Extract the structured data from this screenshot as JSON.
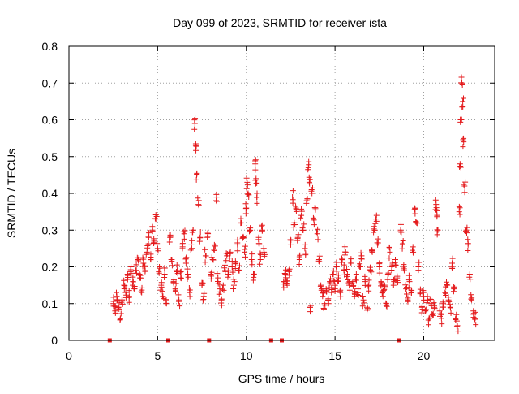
{
  "chart_data": {
    "type": "scatter",
    "title": "Day 099 of 2023, SRMTID for receiver ista",
    "xlabel": "GPS time / hours",
    "ylabel": "SRMTID / TECUs",
    "xlim": [
      0,
      24
    ],
    "ylim": [
      0,
      0.8
    ],
    "xticks": [
      0,
      5,
      10,
      15,
      20
    ],
    "yticks": [
      0,
      0.1,
      0.2,
      0.3,
      0.4,
      0.5,
      0.6,
      0.7,
      0.8
    ],
    "grid": true,
    "marker": "+",
    "color": "#e41a1c",
    "zero_markers_x": [
      2.3,
      5.6,
      7.9,
      11.4,
      12.0,
      18.6
    ],
    "series": [
      {
        "name": "SRMTID",
        "points": [
          [
            2.5,
            0.1
          ],
          [
            2.6,
            0.08
          ],
          [
            2.7,
            0.12
          ],
          [
            2.8,
            0.09
          ],
          [
            2.9,
            0.06
          ],
          [
            3.0,
            0.11
          ],
          [
            3.1,
            0.15
          ],
          [
            3.2,
            0.13
          ],
          [
            3.3,
            0.18
          ],
          [
            3.4,
            0.12
          ],
          [
            3.5,
            0.2
          ],
          [
            3.6,
            0.16
          ],
          [
            3.7,
            0.14
          ],
          [
            3.8,
            0.19
          ],
          [
            3.9,
            0.22
          ],
          [
            4.0,
            0.17
          ],
          [
            4.1,
            0.13
          ],
          [
            4.2,
            0.21
          ],
          [
            4.3,
            0.19
          ],
          [
            4.4,
            0.24
          ],
          [
            4.5,
            0.28
          ],
          [
            4.6,
            0.22
          ],
          [
            4.7,
            0.31
          ],
          [
            4.8,
            0.27
          ],
          [
            4.9,
            0.33
          ],
          [
            5.0,
            0.25
          ],
          [
            5.1,
            0.2
          ],
          [
            5.2,
            0.15
          ],
          [
            5.3,
            0.12
          ],
          [
            5.4,
            0.18
          ],
          [
            5.5,
            0.1
          ],
          [
            5.7,
            0.28
          ],
          [
            5.8,
            0.22
          ],
          [
            5.9,
            0.16
          ],
          [
            6.0,
            0.14
          ],
          [
            6.1,
            0.19
          ],
          [
            6.2,
            0.11
          ],
          [
            6.3,
            0.17
          ],
          [
            6.4,
            0.25
          ],
          [
            6.5,
            0.29
          ],
          [
            6.6,
            0.21
          ],
          [
            6.7,
            0.18
          ],
          [
            6.8,
            0.13
          ],
          [
            6.9,
            0.26
          ],
          [
            7.0,
            0.3
          ],
          [
            7.1,
            0.59
          ],
          [
            7.15,
            0.53
          ],
          [
            7.2,
            0.45
          ],
          [
            7.3,
            0.37
          ],
          [
            7.4,
            0.28
          ],
          [
            7.5,
            0.15
          ],
          [
            7.6,
            0.12
          ],
          [
            7.7,
            0.23
          ],
          [
            7.8,
            0.28
          ],
          [
            8.0,
            0.18
          ],
          [
            8.1,
            0.22
          ],
          [
            8.2,
            0.26
          ],
          [
            8.3,
            0.38
          ],
          [
            8.4,
            0.17
          ],
          [
            8.5,
            0.14
          ],
          [
            8.6,
            0.11
          ],
          [
            8.7,
            0.15
          ],
          [
            8.8,
            0.19
          ],
          [
            8.9,
            0.23
          ],
          [
            9.0,
            0.18
          ],
          [
            9.1,
            0.24
          ],
          [
            9.2,
            0.2
          ],
          [
            9.3,
            0.15
          ],
          [
            9.4,
            0.21
          ],
          [
            9.5,
            0.26
          ],
          [
            9.6,
            0.19
          ],
          [
            9.7,
            0.32
          ],
          [
            9.8,
            0.28
          ],
          [
            9.9,
            0.24
          ],
          [
            10.0,
            0.36
          ],
          [
            10.05,
            0.43
          ],
          [
            10.1,
            0.4
          ],
          [
            10.2,
            0.3
          ],
          [
            10.3,
            0.22
          ],
          [
            10.4,
            0.18
          ],
          [
            10.5,
            0.48
          ],
          [
            10.55,
            0.44
          ],
          [
            10.6,
            0.39
          ],
          [
            10.7,
            0.28
          ],
          [
            10.8,
            0.22
          ],
          [
            10.9,
            0.3
          ],
          [
            11.0,
            0.24
          ],
          [
            12.1,
            0.16
          ],
          [
            12.2,
            0.18
          ],
          [
            12.3,
            0.15
          ],
          [
            12.4,
            0.19
          ],
          [
            12.5,
            0.26
          ],
          [
            12.6,
            0.39
          ],
          [
            12.7,
            0.32
          ],
          [
            12.8,
            0.36
          ],
          [
            12.9,
            0.28
          ],
          [
            13.0,
            0.22
          ],
          [
            13.1,
            0.34
          ],
          [
            13.2,
            0.3
          ],
          [
            13.3,
            0.25
          ],
          [
            13.4,
            0.38
          ],
          [
            13.5,
            0.47
          ],
          [
            13.55,
            0.43
          ],
          [
            13.6,
            0.09
          ],
          [
            13.7,
            0.4
          ],
          [
            13.8,
            0.33
          ],
          [
            13.9,
            0.36
          ],
          [
            14.0,
            0.29
          ],
          [
            14.1,
            0.22
          ],
          [
            14.2,
            0.15
          ],
          [
            14.3,
            0.12
          ],
          [
            14.4,
            0.1
          ],
          [
            14.5,
            0.14
          ],
          [
            14.6,
            0.11
          ],
          [
            14.7,
            0.16
          ],
          [
            14.8,
            0.13
          ],
          [
            14.9,
            0.18
          ],
          [
            15.0,
            0.15
          ],
          [
            15.1,
            0.2
          ],
          [
            15.2,
            0.17
          ],
          [
            15.3,
            0.13
          ],
          [
            15.4,
            0.22
          ],
          [
            15.5,
            0.19
          ],
          [
            15.6,
            0.24
          ],
          [
            15.7,
            0.18
          ],
          [
            15.8,
            0.15
          ],
          [
            15.9,
            0.21
          ],
          [
            16.0,
            0.16
          ],
          [
            16.1,
            0.12
          ],
          [
            16.2,
            0.18
          ],
          [
            16.3,
            0.14
          ],
          [
            16.4,
            0.2
          ],
          [
            16.5,
            0.23
          ],
          [
            16.6,
            0.11
          ],
          [
            16.7,
            0.16
          ],
          [
            16.8,
            0.09
          ],
          [
            16.9,
            0.15
          ],
          [
            17.0,
            0.19
          ],
          [
            17.1,
            0.24
          ],
          [
            17.2,
            0.31
          ],
          [
            17.3,
            0.33
          ],
          [
            17.4,
            0.26
          ],
          [
            17.5,
            0.2
          ],
          [
            17.6,
            0.16
          ],
          [
            17.7,
            0.12
          ],
          [
            17.8,
            0.15
          ],
          [
            17.9,
            0.1
          ],
          [
            18.0,
            0.18
          ],
          [
            18.1,
            0.24
          ],
          [
            18.2,
            0.2
          ],
          [
            18.3,
            0.15
          ],
          [
            18.4,
            0.22
          ],
          [
            18.5,
            0.17
          ],
          [
            18.7,
            0.3
          ],
          [
            18.8,
            0.26
          ],
          [
            18.9,
            0.19
          ],
          [
            19.0,
            0.14
          ],
          [
            19.1,
            0.11
          ],
          [
            19.2,
            0.16
          ],
          [
            19.3,
            0.13
          ],
          [
            19.4,
            0.24
          ],
          [
            19.5,
            0.36
          ],
          [
            19.6,
            0.32
          ],
          [
            19.7,
            0.2
          ],
          [
            19.8,
            0.13
          ],
          [
            19.9,
            0.09
          ],
          [
            20.0,
            0.12
          ],
          [
            20.1,
            0.08
          ],
          [
            20.2,
            0.11
          ],
          [
            20.3,
            0.06
          ],
          [
            20.4,
            0.1
          ],
          [
            20.5,
            0.07
          ],
          [
            20.6,
            0.09
          ],
          [
            20.7,
            0.37
          ],
          [
            20.75,
            0.34
          ],
          [
            20.8,
            0.3
          ],
          [
            20.9,
            0.08
          ],
          [
            21.0,
            0.06
          ],
          [
            21.1,
            0.1
          ],
          [
            21.2,
            0.13
          ],
          [
            21.3,
            0.15
          ],
          [
            21.4,
            0.11
          ],
          [
            21.5,
            0.09
          ],
          [
            21.6,
            0.21
          ],
          [
            21.7,
            0.14
          ],
          [
            21.8,
            0.06
          ],
          [
            21.9,
            0.04
          ],
          [
            22.0,
            0.35
          ],
          [
            22.05,
            0.48
          ],
          [
            22.1,
            0.6
          ],
          [
            22.15,
            0.7
          ],
          [
            22.2,
            0.65
          ],
          [
            22.25,
            0.54
          ],
          [
            22.3,
            0.42
          ],
          [
            22.4,
            0.3
          ],
          [
            22.5,
            0.26
          ],
          [
            22.6,
            0.18
          ],
          [
            22.7,
            0.11
          ],
          [
            22.8,
            0.08
          ],
          [
            22.9,
            0.06
          ]
        ]
      }
    ]
  }
}
